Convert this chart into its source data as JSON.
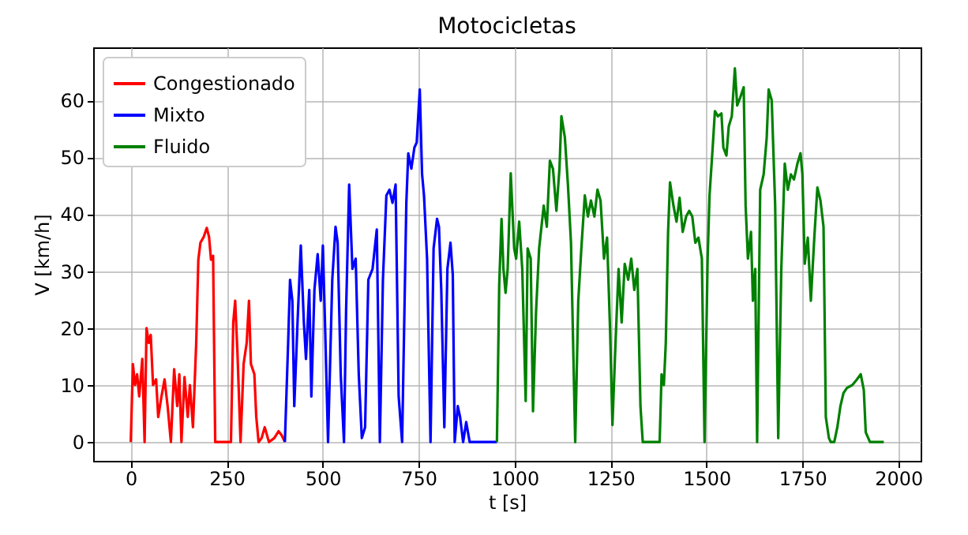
{
  "chart_data": {
    "type": "line",
    "title": "Motocicletas",
    "xlabel": "t [s]",
    "ylabel": "V [km/h]",
    "xlim": [
      -98,
      2058
    ],
    "ylim": [
      -3.3,
      69.3
    ],
    "xticks": [
      0,
      250,
      500,
      750,
      1000,
      1250,
      1500,
      1750,
      2000
    ],
    "yticks": [
      0,
      10,
      20,
      30,
      40,
      50,
      60
    ],
    "grid": true,
    "legend": "top left",
    "line_style": "solid",
    "series": [
      {
        "name": "Congestionado",
        "color": "#ff0000",
        "x": [
          0,
          5.5,
          11,
          16.5,
          22,
          30,
          36,
          41,
          47,
          52,
          58,
          66,
          71.5,
          80,
          88,
          96,
          104.5,
          113,
          121,
          126.5,
          132,
          140,
          148.5,
          154,
          162,
          170.5,
          176,
          181.5,
          190,
          198,
          204,
          209,
          214.5,
          220,
          261,
          267,
          272,
          278,
          286,
          294,
          302,
          308,
          313,
          322,
          327,
          333,
          341,
          349,
          360,
          374,
          385,
          393,
          401.5
        ],
        "values": [
          0,
          13.7,
          10,
          11.9,
          8,
          14.6,
          0,
          20,
          17.4,
          18.8,
          10,
          11,
          4.4,
          8,
          11,
          6.3,
          0,
          12.8,
          6.3,
          11.9,
          0,
          11.4,
          4.4,
          10,
          2.6,
          17.4,
          32,
          35,
          36,
          37.6,
          36,
          32,
          32.7,
          0,
          0,
          21,
          24.8,
          15.6,
          0,
          13.7,
          17.4,
          24.8,
          13.7,
          11.9,
          4.4,
          0,
          0.7,
          2.6,
          0,
          0.7,
          1.9,
          1.2,
          0
        ]
      },
      {
        "name": "Mixto",
        "color": "#0000ff",
        "x": [
          401.5,
          410,
          415,
          421,
          426,
          434.5,
          443,
          451,
          456.5,
          465,
          470.5,
          478.5,
          487,
          495,
          500.5,
          506,
          514,
          525,
          533.5,
          539,
          547,
          555.5,
          561,
          569,
          577.5,
          586,
          594,
          602,
          610.5,
          619,
          630,
          641,
          649,
          657,
          666,
          674,
          682,
          690,
          698,
          707,
          718,
          723,
          731,
          739,
          745,
          753,
          759,
          764,
          772,
          781,
          789,
          798,
          803,
          809,
          817,
          825,
          833,
          839,
          844,
          852,
          858,
          866,
          874,
          883,
          954
        ],
        "values": [
          0,
          17.4,
          28.5,
          24.8,
          6.3,
          21,
          34.5,
          21,
          14.6,
          26.7,
          8,
          26.7,
          33,
          24.8,
          34.5,
          21,
          0,
          28.5,
          37.8,
          35,
          11.9,
          0,
          23,
          45.2,
          30.4,
          32.2,
          11.9,
          0.7,
          2.6,
          28.5,
          30.4,
          37.3,
          0,
          28.5,
          43.3,
          44.3,
          42,
          45.2,
          8,
          0,
          42,
          50.7,
          48,
          51.7,
          52.6,
          61.9,
          47,
          43.3,
          32.2,
          0,
          34,
          39.2,
          37.8,
          26.7,
          2.6,
          30.4,
          35,
          29.4,
          0,
          6.3,
          4.4,
          0,
          3.5,
          0,
          0
        ]
      },
      {
        "name": "Fluido",
        "color": "#008000",
        "x": [
          954,
          960,
          966,
          971,
          976.5,
          982,
          990,
          999,
          1004,
          1012,
          1020,
          1029,
          1034,
          1042,
          1048,
          1056,
          1064,
          1076,
          1084,
          1092,
          1100,
          1109,
          1117,
          1122,
          1131,
          1139,
          1147,
          1158,
          1166,
          1174,
          1183,
          1191,
          1199,
          1208,
          1216,
          1224,
          1233,
          1241,
          1249,
          1255,
          1263,
          1271,
          1279,
          1287,
          1296,
          1304,
          1312,
          1320,
          1328,
          1334,
          1378,
          1383,
          1389,
          1394,
          1400,
          1405,
          1414,
          1422,
          1430,
          1438,
          1447,
          1455,
          1463,
          1471,
          1479,
          1488,
          1495,
          1503,
          1508,
          1517,
          1522,
          1530,
          1539,
          1544,
          1552,
          1558,
          1566,
          1574,
          1580,
          1588,
          1597,
          1602,
          1608,
          1616,
          1621,
          1627,
          1632,
          1640,
          1649,
          1657,
          1662,
          1670,
          1679,
          1687,
          1695,
          1704,
          1712,
          1720,
          1728,
          1737,
          1745,
          1750,
          1756,
          1764,
          1772,
          1781,
          1789,
          1797,
          1805,
          1811,
          1819,
          1824,
          1833,
          1841,
          1849,
          1857,
          1866,
          1880,
          1891,
          1902,
          1910,
          1915,
          1926,
          1962
        ],
        "values": [
          0,
          27.6,
          39.2,
          30.4,
          26.2,
          30.4,
          47.2,
          34,
          32.2,
          38.7,
          30.4,
          7.2,
          34,
          32.2,
          5.4,
          23,
          34,
          41.5,
          37.8,
          49.4,
          48,
          40.6,
          48,
          57.2,
          53.5,
          45.2,
          35,
          0,
          24.8,
          34,
          43.3,
          39.6,
          42.4,
          39.6,
          44.3,
          42.4,
          32.2,
          35.9,
          19.3,
          3,
          17.4,
          30.4,
          21,
          31.3,
          28.5,
          32.2,
          26.7,
          30.4,
          6.3,
          0,
          0,
          11.9,
          10,
          17.4,
          36.9,
          45.6,
          41.5,
          38.7,
          42.9,
          36.9,
          39.6,
          40.6,
          39.6,
          35,
          35.9,
          32.2,
          0,
          32.2,
          43.3,
          52.6,
          58.1,
          57.2,
          57.7,
          51.7,
          50.3,
          55.4,
          57.2,
          65.6,
          59.1,
          60.5,
          62.3,
          41.5,
          32.2,
          36.9,
          24.8,
          30.4,
          0,
          44.3,
          47,
          53.5,
          61.9,
          60,
          41.5,
          0.7,
          30.4,
          48.9,
          44.3,
          47,
          46.1,
          48.9,
          50.7,
          47,
          31.3,
          35.9,
          24.8,
          35.9,
          44.7,
          42.4,
          37.8,
          4.4,
          0.7,
          0,
          0,
          2.6,
          6.3,
          8.6,
          9.5,
          10,
          10.9,
          11.9,
          9.1,
          1.7,
          0,
          0
        ]
      }
    ]
  }
}
